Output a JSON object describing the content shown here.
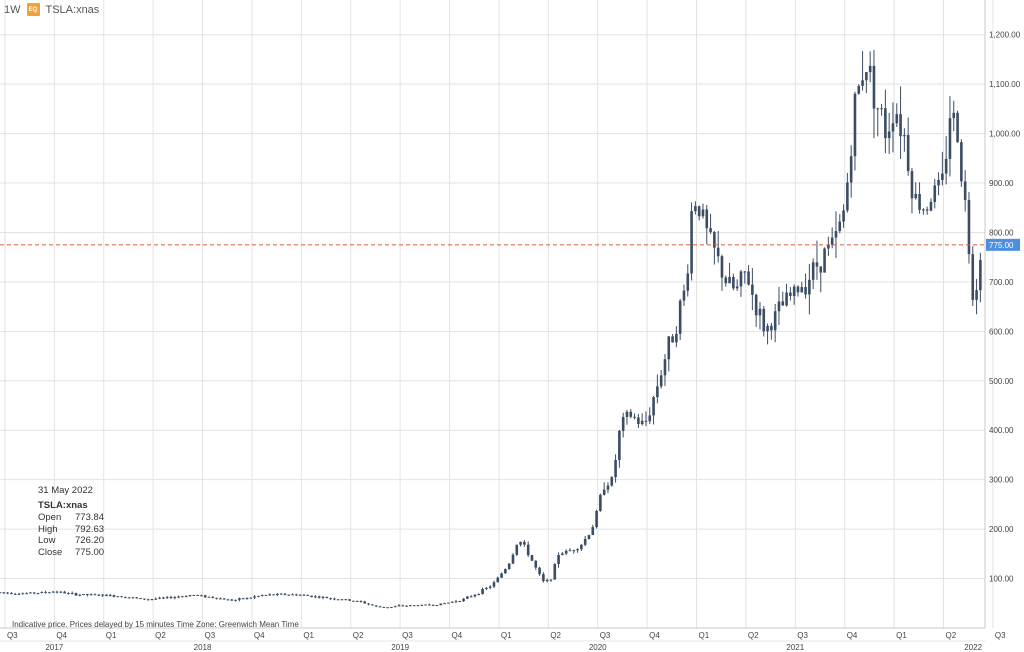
{
  "header": {
    "interval": "1W",
    "badge": "EQ",
    "symbol": "TSLA:xnas"
  },
  "info_box": {
    "date": "31 May 2022",
    "symbol": "TSLA:xnas",
    "open_label": "Open",
    "open": "773.84",
    "high_label": "High",
    "high": "792.63",
    "low_label": "Low",
    "low": "726.20",
    "close_label": "Close",
    "close": "775.00"
  },
  "disclaimer": "Indicative price. Prices delayed by 15 minutes    Time Zone: Greenwich Mean Time",
  "colors": {
    "candle": "#3b4d63",
    "price_line": "#e0553f",
    "price_tag": "#4d8ee0",
    "grid": "#e3e3e3"
  },
  "chart_data": {
    "type": "candlestick",
    "period": "weekly",
    "last_price": 775.0,
    "last_price_label": "775.00",
    "ylim": [
      0,
      1250
    ],
    "y_ticks": [
      100,
      200,
      300,
      400,
      500,
      600,
      700,
      800,
      900,
      1000,
      1100,
      1200
    ],
    "y_tick_labels": [
      "100.00",
      "200.00",
      "300.00",
      "400.00",
      "500.00",
      "600.00",
      "700.00",
      "800.00",
      "900.00",
      "1,000.00",
      "1,100.00",
      "1,200.00"
    ],
    "xlim": [
      2017.475,
      2022.46
    ],
    "quarter_ticks": [
      {
        "label": "Q3",
        "t": 2017.5
      },
      {
        "label": "Q4",
        "t": 2017.75
      },
      {
        "label": "Q1",
        "t": 2018.0
      },
      {
        "label": "Q2",
        "t": 2018.25
      },
      {
        "label": "Q3",
        "t": 2018.5
      },
      {
        "label": "Q4",
        "t": 2018.75
      },
      {
        "label": "Q1",
        "t": 2019.0
      },
      {
        "label": "Q2",
        "t": 2019.25
      },
      {
        "label": "Q3",
        "t": 2019.5
      },
      {
        "label": "Q4",
        "t": 2019.75
      },
      {
        "label": "Q1",
        "t": 2020.0
      },
      {
        "label": "Q2",
        "t": 2020.25
      },
      {
        "label": "Q3",
        "t": 2020.5
      },
      {
        "label": "Q4",
        "t": 2020.75
      },
      {
        "label": "Q1",
        "t": 2021.0
      },
      {
        "label": "Q2",
        "t": 2021.25
      },
      {
        "label": "Q3",
        "t": 2021.5
      },
      {
        "label": "Q4",
        "t": 2021.75
      },
      {
        "label": "Q1",
        "t": 2022.0
      },
      {
        "label": "Q2",
        "t": 2022.25
      },
      {
        "label": "Q3",
        "t": 2022.5
      }
    ],
    "year_ticks": [
      {
        "label": "2017",
        "t": 2017.75
      },
      {
        "label": "2018",
        "t": 2018.5
      },
      {
        "label": "2019",
        "t": 2019.5
      },
      {
        "label": "2020",
        "t": 2020.5
      },
      {
        "label": "2021",
        "t": 2021.5
      },
      {
        "label": "2022",
        "t": 2022.4
      }
    ],
    "close_path": [
      [
        2017.475,
        72
      ],
      [
        2017.6,
        70
      ],
      [
        2017.7,
        72
      ],
      [
        2017.75,
        74
      ],
      [
        2017.85,
        68
      ],
      [
        2018.0,
        66
      ],
      [
        2018.1,
        64
      ],
      [
        2018.2,
        58
      ],
      [
        2018.3,
        60
      ],
      [
        2018.45,
        67
      ],
      [
        2018.55,
        62
      ],
      [
        2018.65,
        56
      ],
      [
        2018.72,
        60
      ],
      [
        2018.8,
        66
      ],
      [
        2018.9,
        68
      ],
      [
        2019.0,
        67
      ],
      [
        2019.1,
        62
      ],
      [
        2019.2,
        58
      ],
      [
        2019.3,
        53
      ],
      [
        2019.38,
        43
      ],
      [
        2019.45,
        42
      ],
      [
        2019.5,
        45
      ],
      [
        2019.6,
        46
      ],
      [
        2019.7,
        48
      ],
      [
        2019.75,
        52
      ],
      [
        2019.82,
        58
      ],
      [
        2019.9,
        72
      ],
      [
        2019.97,
        88
      ],
      [
        2020.05,
        130
      ],
      [
        2020.1,
        180
      ],
      [
        2020.15,
        150
      ],
      [
        2020.2,
        110
      ],
      [
        2020.23,
        90
      ],
      [
        2020.27,
        105
      ],
      [
        2020.3,
        150
      ],
      [
        2020.35,
        155
      ],
      [
        2020.42,
        170
      ],
      [
        2020.47,
        200
      ],
      [
        2020.5,
        240
      ],
      [
        2020.53,
        290
      ],
      [
        2020.58,
        300
      ],
      [
        2020.6,
        380
      ],
      [
        2020.63,
        420
      ],
      [
        2020.67,
        430
      ],
      [
        2020.72,
        410
      ],
      [
        2020.75,
        420
      ],
      [
        2020.8,
        490
      ],
      [
        2020.85,
        560
      ],
      [
        2020.9,
        620
      ],
      [
        2020.95,
        700
      ],
      [
        2020.98,
        870
      ],
      [
        2021.02,
        850
      ],
      [
        2021.05,
        800
      ],
      [
        2021.1,
        750
      ],
      [
        2021.15,
        700
      ],
      [
        2021.2,
        680
      ],
      [
        2021.25,
        720
      ],
      [
        2021.3,
        650
      ],
      [
        2021.35,
        600
      ],
      [
        2021.4,
        630
      ],
      [
        2021.45,
        660
      ],
      [
        2021.5,
        680
      ],
      [
        2021.55,
        700
      ],
      [
        2021.6,
        730
      ],
      [
        2021.65,
        760
      ],
      [
        2021.7,
        780
      ],
      [
        2021.75,
        850
      ],
      [
        2021.8,
        1050
      ],
      [
        2021.85,
        1150
      ],
      [
        2021.88,
        1120
      ],
      [
        2021.92,
        1050
      ],
      [
        2021.96,
        1000
      ],
      [
        2022.0,
        1060
      ],
      [
        2022.05,
        1000
      ],
      [
        2022.1,
        870
      ],
      [
        2022.15,
        850
      ],
      [
        2022.2,
        880
      ],
      [
        2022.25,
        900
      ],
      [
        2022.28,
        1050
      ],
      [
        2022.32,
        1000
      ],
      [
        2022.35,
        900
      ],
      [
        2022.38,
        760
      ],
      [
        2022.4,
        680
      ],
      [
        2022.42,
        700
      ],
      [
        2022.44,
        775
      ]
    ]
  }
}
